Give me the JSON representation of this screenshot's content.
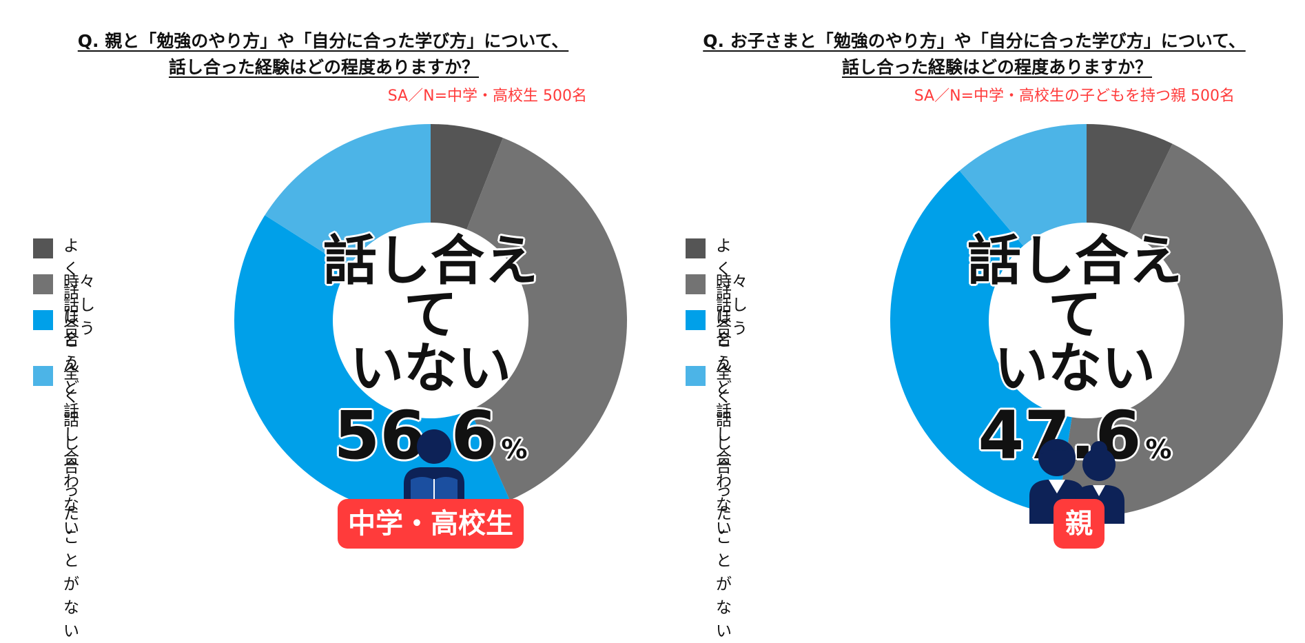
{
  "colors": {
    "often": "#555555",
    "sometimes": "#737373",
    "rarely": "#00a0e9",
    "never": "#4cb4e7",
    "accent": "#ff3b3b",
    "icon": "#0d2257"
  },
  "legend": [
    {
      "label": "よく話し合う"
    },
    {
      "label": "時々話し合う"
    },
    {
      "label": "ほとんど\n話し合わない"
    },
    {
      "label": "全く話し合った\nことがない"
    }
  ],
  "left": {
    "question_line1": "Q. 親と「勉強のやり方」や「自分に合った学び方」について、",
    "question_line2": "話し合った経験はどの程度ありますか？",
    "note": "SA／N=中学・高校生 500名",
    "center_label": "話し合えて\nいない",
    "center_value": "56.6",
    "center_unit": "%",
    "badge": "中学・高校生",
    "icon": "student-reading-icon"
  },
  "right": {
    "question_line1": "Q. お子さまと「勉強のやり方」や「自分に合った学び方」について、",
    "question_line2": "話し合った経験はどの程度ありますか？",
    "note": "SA／N=中学・高校生の子どもを持つ親 500名",
    "center_label": "話し合えて\nいない",
    "center_value": "47.6",
    "center_unit": "%",
    "badge": "親",
    "icon": "parents-icon"
  },
  "chart_data": [
    {
      "type": "pie",
      "categories": [
        "よく話し合う",
        "時々話し合う",
        "ほとんど話し合わない",
        "全く話し合ったことがない"
      ],
      "values": [
        6.0,
        37.4,
        40.6,
        16.0
      ],
      "colors": [
        "#555555",
        "#737373",
        "#00a0e9",
        "#4cb4e7"
      ]
    },
    {
      "type": "pie",
      "categories": [
        "よく話し合う",
        "時々話し合う",
        "ほとんど話し合わない",
        "全く話し合ったことがない"
      ],
      "values": [
        7.2,
        45.2,
        36.4,
        11.2
      ],
      "colors": [
        "#555555",
        "#737373",
        "#00a0e9",
        "#4cb4e7"
      ]
    }
  ]
}
